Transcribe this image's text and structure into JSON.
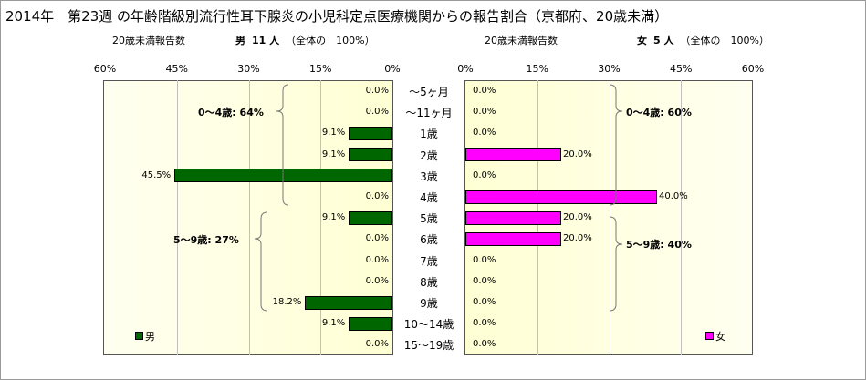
{
  "title": "2014年　第23週 の年齢階級別流行性耳下腺炎の小児科定点医療機関からの報告割合（京都府、20歳未満）",
  "male_header": {
    "label": "20歳未満報告数",
    "sex": "男",
    "count": "11 人",
    "note": "（全体の　100%）"
  },
  "female_header": {
    "label": "20歳未満報告数",
    "sex": "女",
    "count": "5 人",
    "note": "（全体の　100%）"
  },
  "colors": {
    "male": "#006600",
    "female": "#ff00ff"
  },
  "chart_data": {
    "type": "bar",
    "orientation": "horizontal-pyramid",
    "categories": [
      "～5ヶ月",
      "～11ヶ月",
      "1歳",
      "2歳",
      "3歳",
      "4歳",
      "5歳",
      "6歳",
      "7歳",
      "8歳",
      "9歳",
      "10～14歳",
      "15～19歳"
    ],
    "series": [
      {
        "name": "男",
        "values": [
          0.0,
          0.0,
          9.1,
          9.1,
          45.5,
          0.0,
          9.1,
          0.0,
          0.0,
          0.0,
          18.2,
          9.1,
          0.0
        ],
        "labels": [
          "0.0%",
          "0.0%",
          "9.1%",
          "9.1%",
          "45.5%",
          "0.0%",
          "9.1%",
          "0.0%",
          "0.0%",
          "0.0%",
          "18.2%",
          "9.1%",
          "0.0%"
        ]
      },
      {
        "name": "女",
        "values": [
          0.0,
          0.0,
          0.0,
          20.0,
          0.0,
          40.0,
          20.0,
          20.0,
          0.0,
          0.0,
          0.0,
          0.0,
          0.0
        ],
        "labels": [
          "0.0%",
          "0.0%",
          "0.0%",
          "20.0%",
          "0.0%",
          "40.0%",
          "20.0%",
          "20.0%",
          "0.0%",
          "0.0%",
          "0.0%",
          "0.0%",
          "0.0%"
        ]
      }
    ],
    "xlim": [
      0,
      60
    ],
    "left_ticks": [
      "60%",
      "45%",
      "30%",
      "15%",
      "0%"
    ],
    "right_ticks": [
      "0%",
      "15%",
      "30%",
      "45%",
      "60%"
    ],
    "grid": true,
    "legend": [
      "男",
      "女"
    ],
    "annotations": {
      "male_0_4": "0～4歳: 64%",
      "male_5_9": "5～9歳: 27%",
      "female_0_4": "0～4歳: 60%",
      "female_5_9": "5～9歳: 40%"
    }
  }
}
